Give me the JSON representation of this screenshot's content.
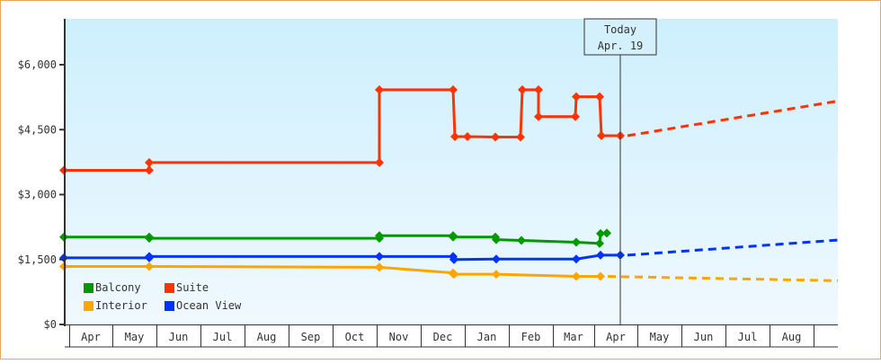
{
  "chart_data": {
    "type": "line",
    "title": "",
    "xlabel": "",
    "ylabel": "",
    "ylim": [
      0,
      7000
    ],
    "y_ticks": [
      "$0",
      "$1,500",
      "$3,000",
      "$4,500",
      "$6,000"
    ],
    "y_tick_values": [
      0,
      1500,
      3000,
      4500,
      6000
    ],
    "x_ticks": [
      "Apr",
      "May",
      "Jun",
      "Jul",
      "Aug",
      "Sep",
      "Oct",
      "Nov",
      "Dec",
      "Jan",
      "Feb",
      "Mar",
      "Apr",
      "May",
      "Jun",
      "Jul",
      "Aug"
    ],
    "today_marker": {
      "line1": "Today",
      "line2": "Apr. 19"
    },
    "legend_position": "bottom-left inside plot",
    "grid": false,
    "series": [
      {
        "name": "Suite",
        "color": "#ff3300",
        "points": [
          {
            "x": "Apr",
            "y": 3560
          },
          {
            "x": "May",
            "y": 3560
          },
          {
            "x": "May",
            "y": 3740
          },
          {
            "x": "Nov",
            "y": 3740
          },
          {
            "x": "Nov",
            "y": 5420
          },
          {
            "x": "Dec",
            "y": 5420
          },
          {
            "x": "Dec",
            "y": 4340
          },
          {
            "x": "Dec",
            "y": 4340
          },
          {
            "x": "Jan",
            "y": 4330
          },
          {
            "x": "Feb",
            "y": 4330
          },
          {
            "x": "Feb",
            "y": 5420
          },
          {
            "x": "Feb",
            "y": 5420
          },
          {
            "x": "Feb",
            "y": 4800
          },
          {
            "x": "Mar",
            "y": 4800
          },
          {
            "x": "Mar",
            "y": 5260
          },
          {
            "x": "Apr",
            "y": 5260
          },
          {
            "x": "Apr",
            "y": 4360
          },
          {
            "x": "Today",
            "y": 4360
          }
        ],
        "forecast_end": 5160
      },
      {
        "name": "Balcony",
        "color": "#009900",
        "points": [
          {
            "x": "Apr",
            "y": 2020
          },
          {
            "x": "May",
            "y": 2020
          },
          {
            "x": "May",
            "y": 1990
          },
          {
            "x": "Nov",
            "y": 1990
          },
          {
            "x": "Nov",
            "y": 2050
          },
          {
            "x": "Dec",
            "y": 2050
          },
          {
            "x": "Dec",
            "y": 2020
          },
          {
            "x": "Jan",
            "y": 2020
          },
          {
            "x": "Jan",
            "y": 1960
          },
          {
            "x": "Feb",
            "y": 1940
          },
          {
            "x": "Mar",
            "y": 1900
          },
          {
            "x": "Apr",
            "y": 1870
          },
          {
            "x": "Apr",
            "y": 2100
          },
          {
            "x": "Apr",
            "y": 2110
          }
        ]
      },
      {
        "name": "Ocean View",
        "color": "#0033ff",
        "points": [
          {
            "x": "Apr",
            "y": 1540
          },
          {
            "x": "May",
            "y": 1540
          },
          {
            "x": "May",
            "y": 1570
          },
          {
            "x": "Nov",
            "y": 1570
          },
          {
            "x": "Dec",
            "y": 1570
          },
          {
            "x": "Dec",
            "y": 1500
          },
          {
            "x": "Jan",
            "y": 1500
          },
          {
            "x": "Mar",
            "y": 1510
          },
          {
            "x": "Apr",
            "y": 1510
          },
          {
            "x": "Apr",
            "y": 1600
          },
          {
            "x": "Today",
            "y": 1600
          }
        ],
        "forecast_end": 1950
      },
      {
        "name": "Interior",
        "color": "#ffa500",
        "points": [
          {
            "x": "Apr",
            "y": 1340
          },
          {
            "x": "May",
            "y": 1340
          },
          {
            "x": "Nov",
            "y": 1320
          },
          {
            "x": "Dec",
            "y": 1320
          },
          {
            "x": "Dec",
            "y": 1190
          },
          {
            "x": "Jan",
            "y": 1170
          },
          {
            "x": "Mar",
            "y": 1160
          },
          {
            "x": "Apr",
            "y": 1160
          },
          {
            "x": "Apr",
            "y": 1110
          },
          {
            "x": "Today",
            "y": 1110
          }
        ],
        "forecast_end": 1010
      }
    ]
  },
  "legend": [
    {
      "label": "Balcony",
      "color": "#009900"
    },
    {
      "label": "Suite",
      "color": "#ff3300"
    },
    {
      "label": "Interior",
      "color": "#ffa500"
    },
    {
      "label": "Ocean View",
      "color": "#0033ff"
    }
  ]
}
